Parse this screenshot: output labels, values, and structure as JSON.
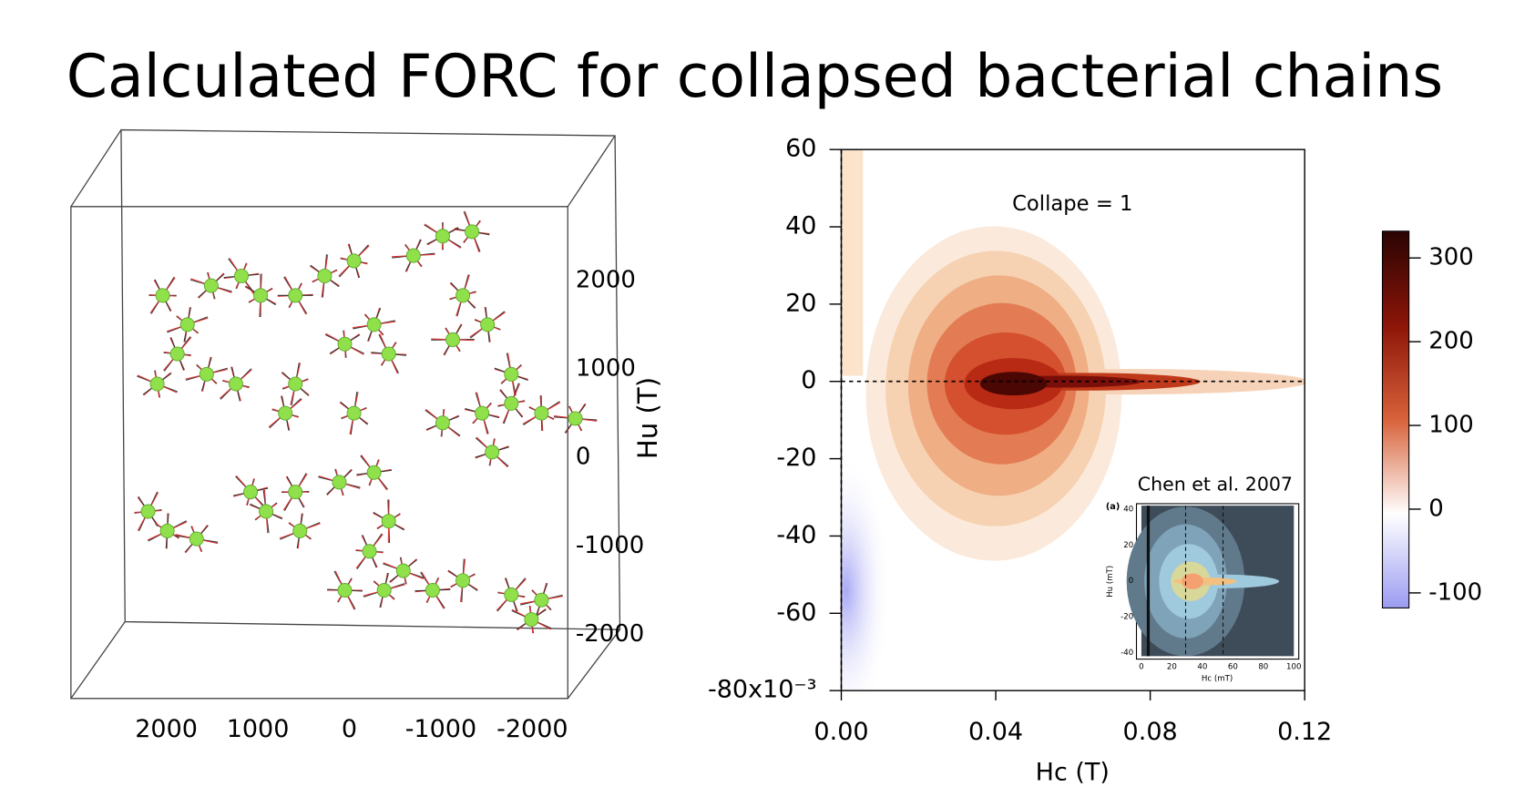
{
  "title": "Calculated FORC for collapsed bacterial chains",
  "chart_data": [
    {
      "type": "scatter3d",
      "xticks": [
        2000,
        1000,
        0,
        -1000,
        -2000
      ],
      "zticks": [
        2000,
        1000,
        0,
        -1000,
        -2000
      ],
      "zlabel": "Hu (T)",
      "color": "#8fe04a",
      "x": [
        2040,
        1770,
        1510,
        1180,
        970,
        1880,
        1560,
        2100,
        590,
        270,
        -50,
        -270,
        50,
        -430,
        590,
        700,
        -700,
        -1020,
        -1340,
        -1240,
        -1510,
        -1130,
        -1020,
        -1450,
        -1770,
        -2100,
        -2470,
        -1560,
        -1770,
        2200,
        1990,
        1670,
        1080,
        910,
        590,
        540,
        110,
        -270,
        -430,
        -220,
        -380,
        -590,
        -910,
        -1240,
        -1770,
        -2100,
        -1990,
        50,
        -50,
        1240
      ],
      "z": [
        1830,
        1500,
        1940,
        2050,
        1830,
        1170,
        940,
        830,
        1830,
        2050,
        2220,
        1500,
        1280,
        1170,
        830,
        500,
        2280,
        2500,
        2550,
        1830,
        1500,
        1330,
        390,
        500,
        610,
        500,
        440,
        60,
        940,
        -610,
        -830,
        -920,
        -390,
        -610,
        -390,
        -830,
        -280,
        -170,
        -720,
        -1060,
        -1500,
        -1280,
        -1500,
        -1390,
        -1550,
        -1610,
        -1830,
        -1500,
        500,
        830
      ]
    },
    {
      "type": "forc",
      "xlim": [
        0,
        0.12
      ],
      "ylim": [
        -80,
        60
      ],
      "xticks": [
        {
          "value": 0,
          "label": "0.00"
        },
        0.04,
        0.08,
        0.12
      ],
      "yticks": [
        60,
        40,
        20,
        0,
        -20,
        -40,
        -60,
        {
          "value": -80,
          "label": "-80x10⁻³"
        }
      ],
      "xlabel": "Hc (T)",
      "annotation": "Collape = 1",
      "colorbar": {
        "zlim": [
          -118,
          332
        ],
        "zticks": [
          300,
          200,
          100,
          0,
          -100
        ],
        "colors": [
          "#9b9bf2",
          "#ffffff",
          "#d8623a",
          "#8c1508",
          "#2a0403"
        ]
      },
      "inset": {
        "title": "Chen et al. 2007",
        "panel_label": "(a)",
        "xlabel": "Hc (mT)",
        "ylabel": "Hu (mT)",
        "xlim": [
          0,
          100
        ],
        "ylim": [
          -42,
          42
        ],
        "xticks": [
          0,
          20,
          40,
          60,
          80,
          100
        ],
        "yticks": [
          40,
          20,
          0,
          -20,
          -40
        ]
      }
    }
  ]
}
